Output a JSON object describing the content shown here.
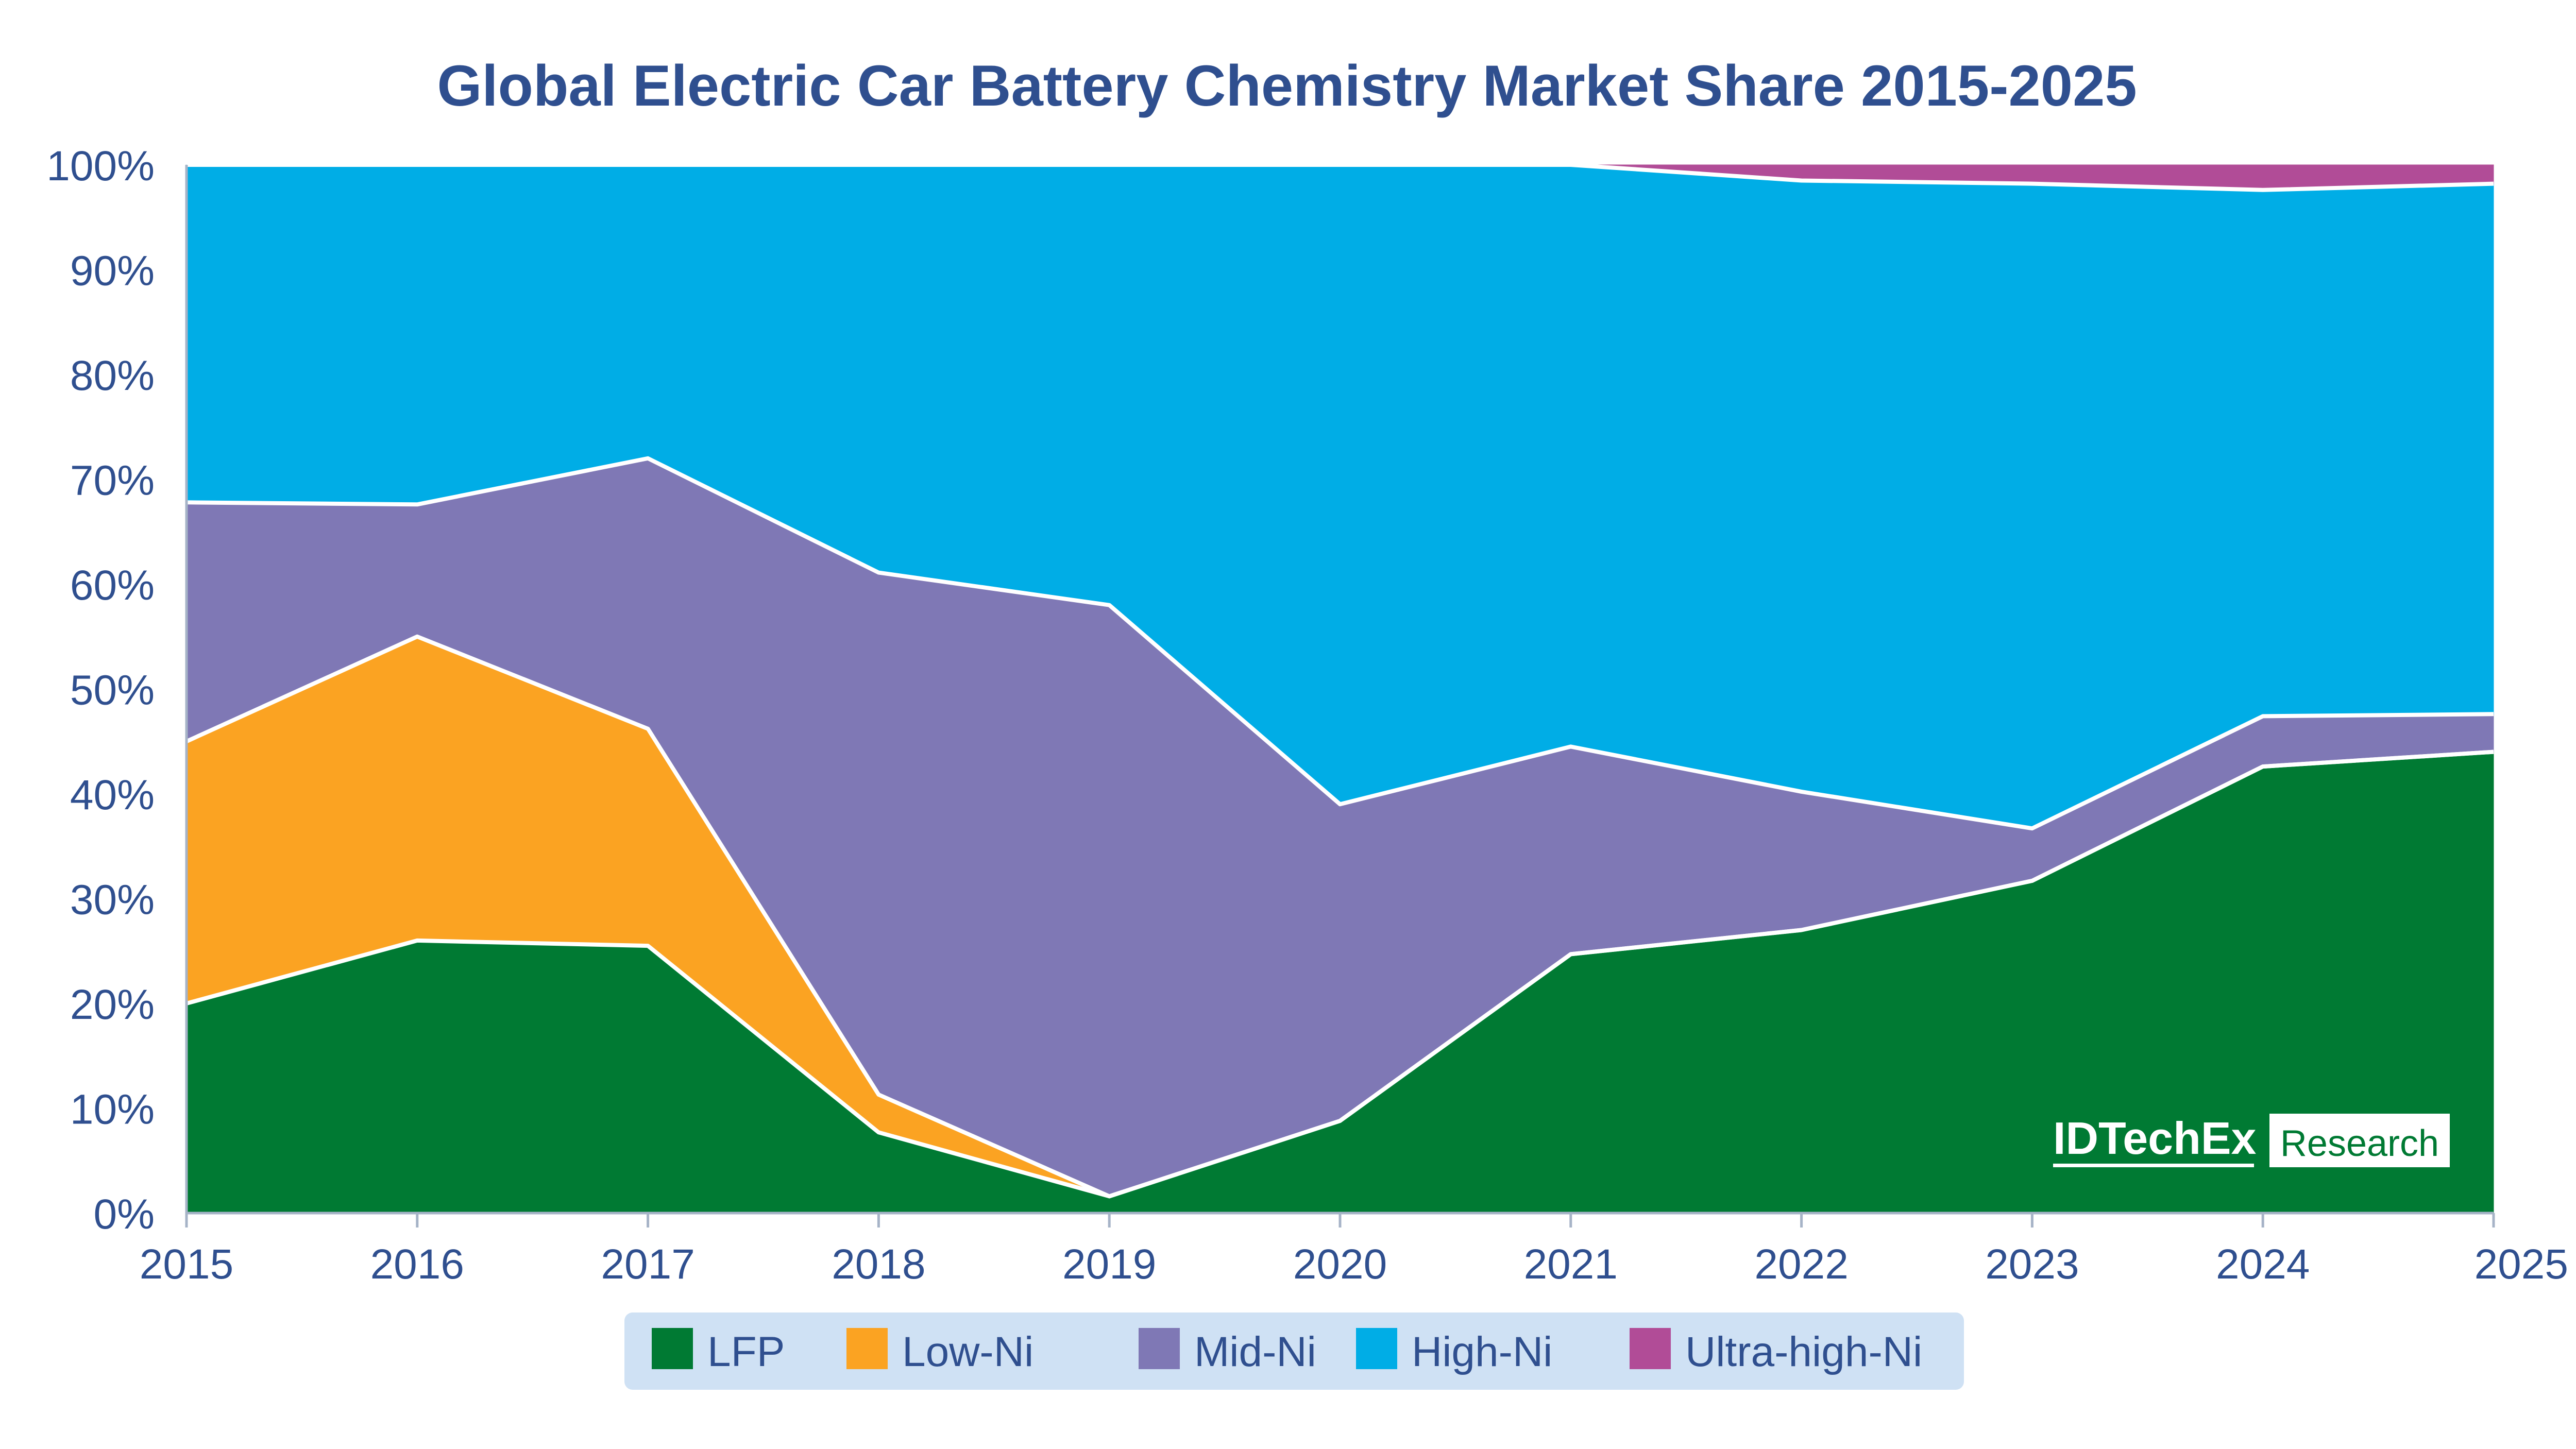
{
  "chart_data": {
    "type": "area",
    "stacked": true,
    "title": "Global Electric Car Battery Chemistry Market Share 2015-2025",
    "xlabel": "",
    "ylabel": "",
    "x": [
      "2015",
      "2016",
      "2017",
      "2018",
      "2019",
      "2020",
      "2021",
      "2022",
      "2023",
      "2024",
      "2025"
    ],
    "ylim": [
      0,
      100
    ],
    "y_ticks": [
      "0%",
      "10%",
      "20%",
      "30%",
      "40%",
      "50%",
      "60%",
      "70%",
      "80%",
      "90%",
      "100%"
    ],
    "grid": false,
    "legend_position": "bottom",
    "series": [
      {
        "name": "LFP",
        "color": "#007a33",
        "values": [
          20,
          26,
          25.5,
          7.7,
          1.6,
          8.8,
          24.7,
          27,
          31.7,
          42.6,
          44
        ]
      },
      {
        "name": "Low-Ni",
        "color": "#fba322",
        "values": [
          25,
          29,
          20.7,
          3.6,
          0,
          0,
          0,
          0,
          0,
          0,
          0
        ]
      },
      {
        "name": "Mid-Ni",
        "color": "#7f78b5",
        "values": [
          22.8,
          12.6,
          25.8,
          49.8,
          56.4,
          30.2,
          19.8,
          13.2,
          5,
          4.8,
          3.6
        ]
      },
      {
        "name": "High-Ni",
        "color": "#00ade6",
        "values": [
          32.2,
          32.4,
          28,
          38.9,
          42,
          61,
          55.5,
          58.3,
          61.5,
          50.2,
          50.6
        ]
      },
      {
        "name": "Ultra-high-Ni",
        "color": "#b14c97",
        "values": [
          0,
          0,
          0,
          0,
          0,
          0,
          0,
          1.5,
          1.8,
          2.4,
          1.8
        ]
      }
    ]
  },
  "branding": {
    "name": "IDTechEx",
    "tag": "Research"
  }
}
